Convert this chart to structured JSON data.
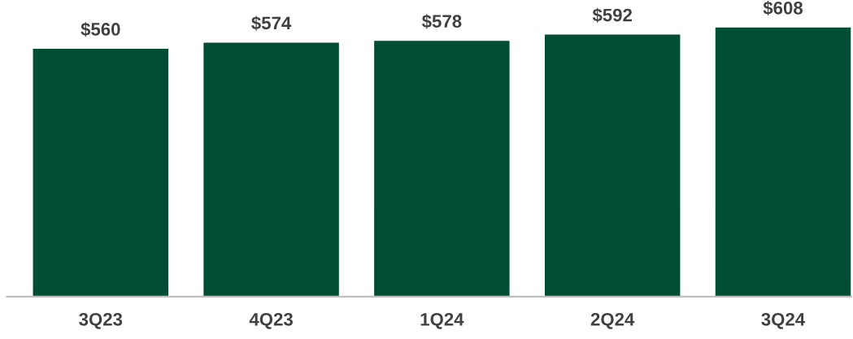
{
  "chart_data": {
    "type": "bar",
    "categories": [
      "3Q23",
      "4Q23",
      "1Q24",
      "2Q24",
      "3Q24"
    ],
    "values": [
      560,
      574,
      578,
      592,
      608
    ],
    "value_labels": [
      "$560",
      "$574",
      "$578",
      "$592",
      "$608"
    ],
    "color": "#004d35",
    "grid": false,
    "legend": false
  }
}
